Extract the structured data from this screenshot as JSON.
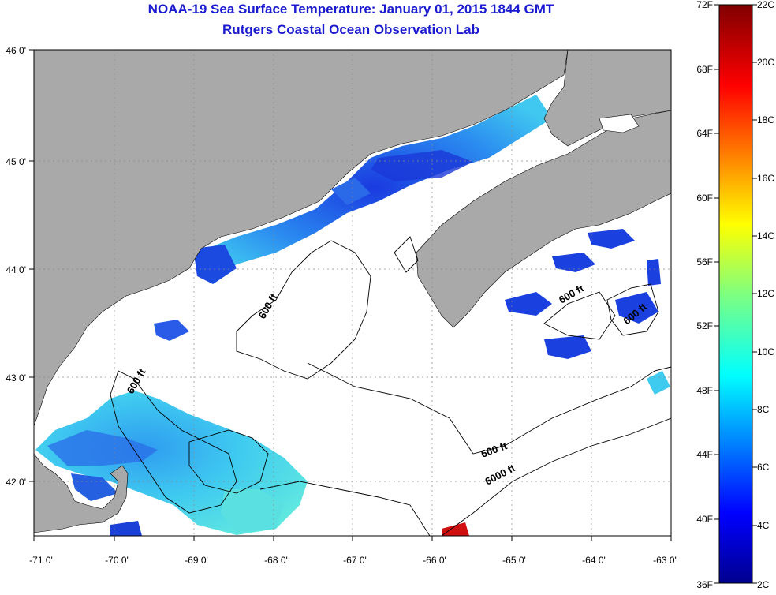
{
  "header": {
    "title": "NOAA-19 Sea Surface Temperature:  January 01, 2015 1844 GMT",
    "subtitle": "Rutgers Coastal Ocean Observation Lab"
  },
  "map": {
    "lon_range": [
      -71,
      -63
    ],
    "lat_range": [
      41.5,
      46
    ],
    "lon_ticks": [
      "-71 0'",
      "-70 0'",
      "-69 0'",
      "-68 0'",
      "-67 0'",
      "-66 0'",
      "-65 0'",
      "-64 0'",
      "-63 0'"
    ],
    "lat_ticks": [
      "46 0'",
      "45 0'",
      "44 0'",
      "43 0'",
      "42 0'"
    ],
    "contour_labels": [
      "600 ft",
      "600 ft",
      "600 ft",
      "600 ft",
      "600 ft",
      "6000 ft"
    ],
    "colors": {
      "land": "#a9a9a9",
      "water_nodata": "#ffffff",
      "grid": "#888888"
    }
  },
  "colorbar": {
    "fahrenheit_labels": [
      "72F",
      "68F",
      "64F",
      "60F",
      "56F",
      "52F",
      "48F",
      "44F",
      "40F",
      "36F"
    ],
    "celsius_labels": [
      "22C",
      "20C",
      "18C",
      "16C",
      "14C",
      "12C",
      "10C",
      "8C",
      "6C",
      "4C",
      "2C"
    ],
    "range_c": [
      2,
      22
    ],
    "range_f": [
      36,
      72
    ]
  }
}
